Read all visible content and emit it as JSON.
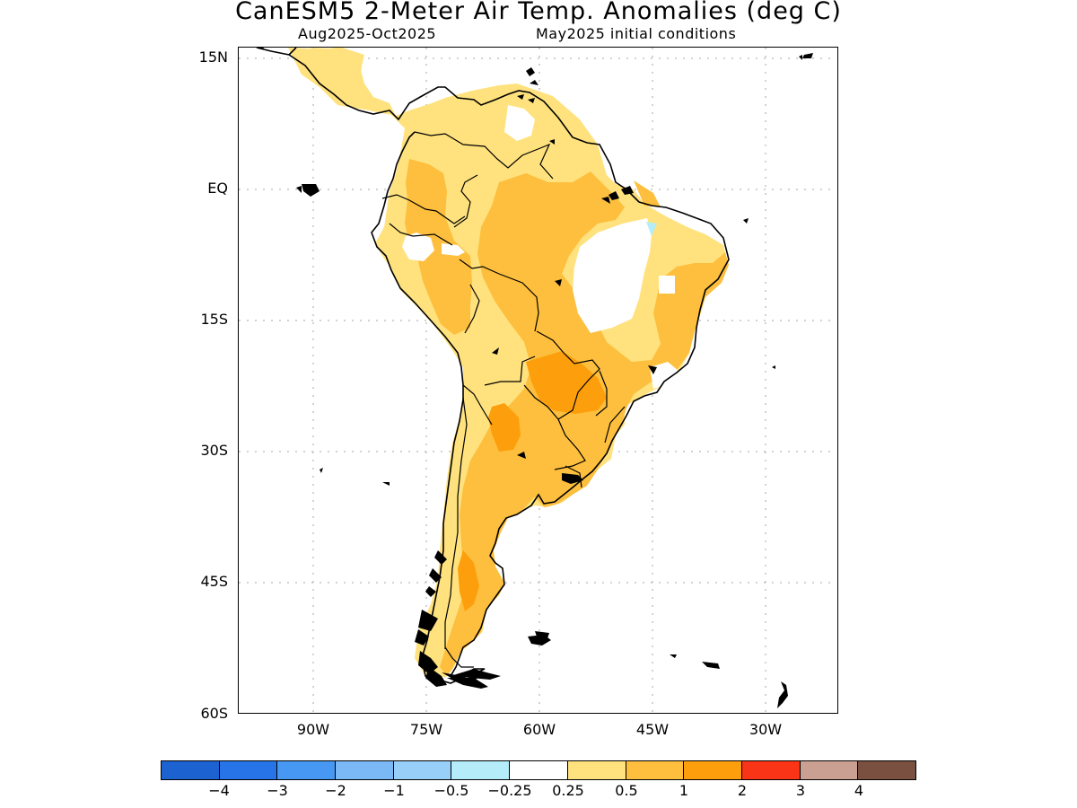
{
  "title": "CanESM5 2-Meter Air Temp. Anomalies (deg C)",
  "subtitle_left": "Aug2025-Oct2025",
  "subtitle_right": "May2025 initial conditions",
  "axes": {
    "y_ticks": [
      "15N",
      "EQ",
      "15S",
      "30S",
      "45S",
      "60S"
    ],
    "x_ticks": [
      "90W",
      "75W",
      "60W",
      "45W",
      "30W"
    ],
    "grid": "dotted"
  },
  "colorbar": {
    "colors": [
      "#1c63d1",
      "#2774e8",
      "#4698f2",
      "#7ab8f6",
      "#98cff8",
      "#b4ecf9",
      "#ffffff",
      "#ffe27e",
      "#fdbf3d",
      "#fd9f0c",
      "#fa3416",
      "#c9a092",
      "#7a5040"
    ],
    "labels": [
      "−4",
      "−3",
      "−2",
      "−1",
      "−0.5",
      "−0.25",
      "0.25",
      "0.5",
      "1",
      "2",
      "3",
      "4"
    ]
  }
}
